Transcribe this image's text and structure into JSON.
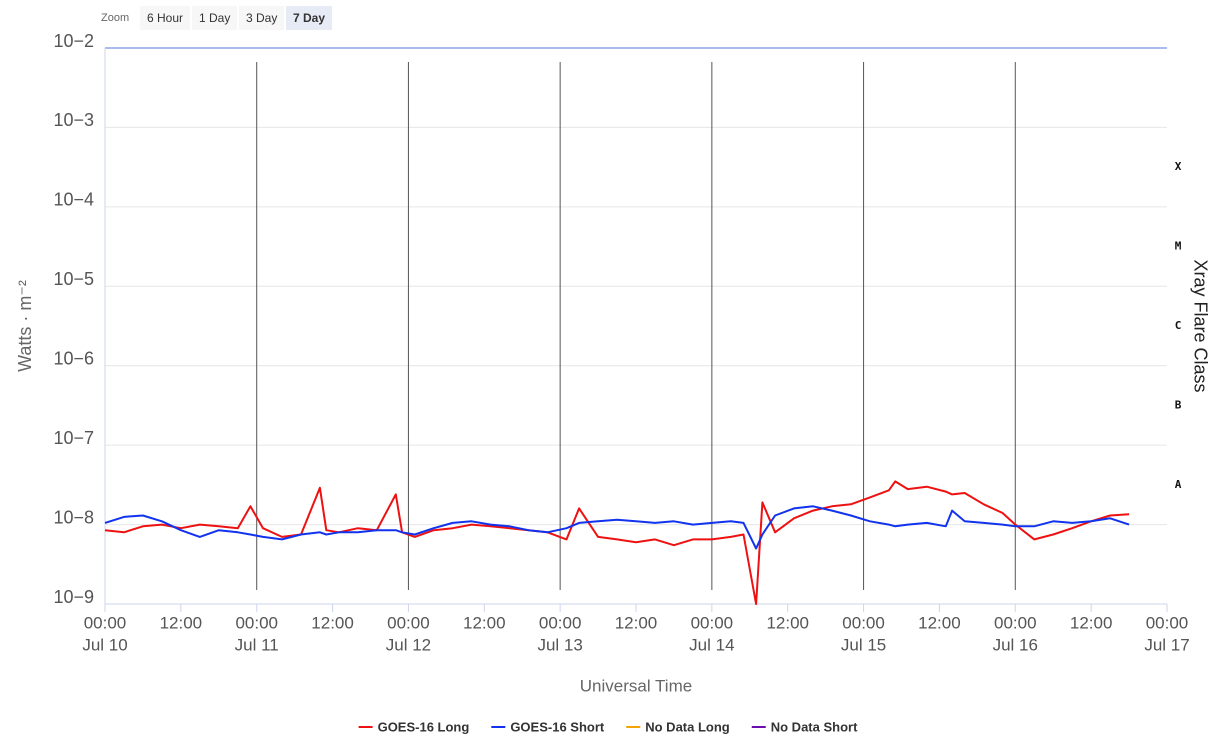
{
  "zoom": {
    "label": "Zoom",
    "buttons": [
      "6 Hour",
      "1 Day",
      "3 Day",
      "7 Day"
    ],
    "selected": 3
  },
  "chart_data": {
    "type": "line",
    "y_label": "Watts · m⁻²",
    "x_label": "Universal Time",
    "y2_label": "Xray Flare Class",
    "log_y": true,
    "grid": true,
    "ylim": [
      1e-09,
      0.01
    ],
    "yticks": [
      {
        "value": 0.01,
        "label": "10−2"
      },
      {
        "value": 0.001,
        "label": "10−3"
      },
      {
        "value": 0.0001,
        "label": "10−4"
      },
      {
        "value": 1e-05,
        "label": "10−5"
      },
      {
        "value": 1e-06,
        "label": "10−6"
      },
      {
        "value": 1e-07,
        "label": "10−7"
      },
      {
        "value": 1e-08,
        "label": "10−8"
      },
      {
        "value": 1e-09,
        "label": "10−9"
      }
    ],
    "flare_classes": [
      {
        "value": 0.000316,
        "label": "X"
      },
      {
        "value": 3.16e-05,
        "label": "M"
      },
      {
        "value": 3.16e-06,
        "label": "C"
      },
      {
        "value": 3.16e-07,
        "label": "B"
      },
      {
        "value": 3.16e-08,
        "label": "A"
      }
    ],
    "xlim": [
      0,
      168
    ],
    "xticks": [
      {
        "value": 0,
        "label": "00:00",
        "date": "Jul 10"
      },
      {
        "value": 12,
        "label": "12:00"
      },
      {
        "value": 24,
        "label": "00:00",
        "date": "Jul 11"
      },
      {
        "value": 36,
        "label": "12:00"
      },
      {
        "value": 48,
        "label": "00:00",
        "date": "Jul 12"
      },
      {
        "value": 60,
        "label": "12:00"
      },
      {
        "value": 72,
        "label": "00:00",
        "date": "Jul 13"
      },
      {
        "value": 84,
        "label": "12:00"
      },
      {
        "value": 96,
        "label": "00:00",
        "date": "Jul 14"
      },
      {
        "value": 108,
        "label": "12:00"
      },
      {
        "value": 120,
        "label": "00:00",
        "date": "Jul 15"
      },
      {
        "value": 132,
        "label": "12:00"
      },
      {
        "value": 144,
        "label": "00:00",
        "date": "Jul 16"
      },
      {
        "value": 156,
        "label": "12:00"
      },
      {
        "value": 168,
        "label": "00:00",
        "date": "Jul 17"
      }
    ],
    "x": [
      0,
      3,
      6,
      9,
      12,
      15,
      18,
      21,
      23,
      25,
      28,
      31,
      34,
      35,
      37,
      40,
      43,
      46,
      47,
      49,
      52,
      55,
      58,
      61,
      64,
      67,
      70,
      73,
      75,
      78,
      81,
      84,
      87,
      90,
      93,
      96,
      99,
      101,
      103,
      104,
      106,
      109,
      112,
      115,
      118,
      121,
      124,
      125,
      127,
      130,
      133,
      134,
      136,
      139,
      142,
      144,
      147,
      150,
      153,
      156,
      159,
      162
    ],
    "series": [
      {
        "name": "GOES-16 Long",
        "color": "#ee1111",
        "values": [
          8.5e-09,
          8e-09,
          9.5e-09,
          1e-08,
          9e-09,
          1e-08,
          9.5e-09,
          9e-09,
          1.7e-08,
          9e-09,
          7e-09,
          7.5e-09,
          2.9e-08,
          8.5e-09,
          8e-09,
          9e-09,
          8.5e-09,
          2.4e-08,
          8e-09,
          7e-09,
          8.5e-09,
          9e-09,
          1e-08,
          9.5e-09,
          9e-09,
          8.5e-09,
          8e-09,
          6.5e-09,
          1.6e-08,
          7e-09,
          6.5e-09,
          6e-09,
          6.5e-09,
          5.5e-09,
          6.5e-09,
          6.5e-09,
          7e-09,
          7.5e-09,
          1e-09,
          1.9e-08,
          8e-09,
          1.2e-08,
          1.5e-08,
          1.7e-08,
          1.8e-08,
          2.2e-08,
          2.7e-08,
          3.5e-08,
          2.8e-08,
          3e-08,
          2.6e-08,
          2.4e-08,
          2.5e-08,
          1.8e-08,
          1.4e-08,
          1e-08,
          6.5e-09,
          7.5e-09,
          9e-09,
          1.1e-08,
          1.3e-08,
          1.35e-08
        ]
      },
      {
        "name": "GOES-16 Short",
        "color": "#1133ee",
        "values": [
          1.05e-08,
          1.25e-08,
          1.3e-08,
          1.1e-08,
          8.5e-09,
          7e-09,
          8.5e-09,
          8e-09,
          7.5e-09,
          7e-09,
          6.5e-09,
          7.5e-09,
          8e-09,
          7.5e-09,
          8e-09,
          8e-09,
          8.5e-09,
          8.5e-09,
          8e-09,
          7.5e-09,
          9e-09,
          1.05e-08,
          1.1e-08,
          1e-08,
          9.5e-09,
          8.5e-09,
          8e-09,
          9e-09,
          1.05e-08,
          1.1e-08,
          1.15e-08,
          1.1e-08,
          1.05e-08,
          1.1e-08,
          1e-08,
          1.05e-08,
          1.1e-08,
          1.05e-08,
          5e-09,
          7.5e-09,
          1.3e-08,
          1.6e-08,
          1.7e-08,
          1.5e-08,
          1.3e-08,
          1.1e-08,
          1e-08,
          9.5e-09,
          1e-08,
          1.05e-08,
          9.5e-09,
          1.5e-08,
          1.1e-08,
          1.05e-08,
          1e-08,
          9.5e-09,
          9.5e-09,
          1.1e-08,
          1.05e-08,
          1.1e-08,
          1.2e-08,
          1e-08
        ]
      }
    ],
    "extra_legend": [
      {
        "name": "No Data Long",
        "color": "#f5a300"
      },
      {
        "name": "No Data Short",
        "color": "#6a0dad"
      }
    ]
  }
}
